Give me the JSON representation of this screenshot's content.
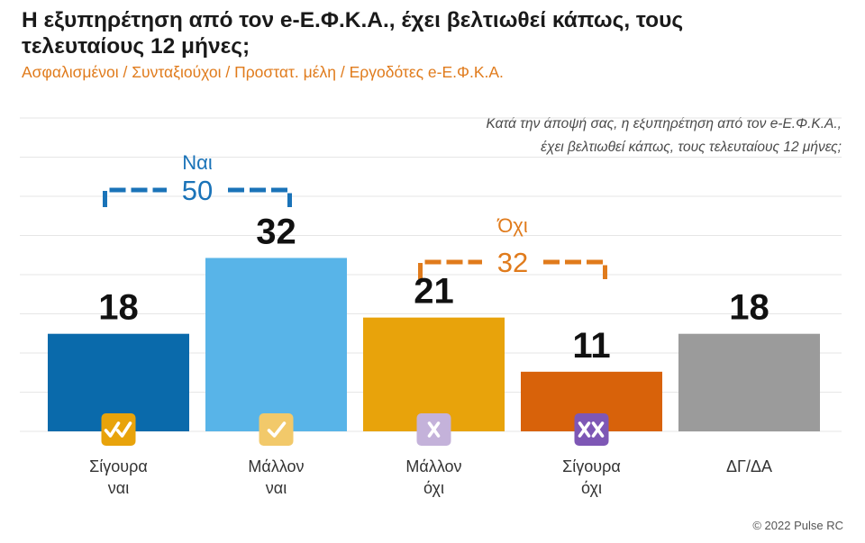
{
  "header": {
    "title": "Η εξυπηρέτηση από τον e-Ε.Φ.Κ.Α., έχει βελτιωθεί κάπως, τους τελευταίους 12 μήνες;",
    "subtitle": "Ασφαλισμένοι / Συνταξιούχοι / Προστατ. μέλη / Εργοδότες e-Ε.Φ.Κ.Α."
  },
  "note": {
    "line1": "Κατά την άποψή σας, η εξυπηρέτηση από τον e-Ε.Φ.Κ.Α.,",
    "line2": "έχει βελτιωθεί κάπως, τους τελευταίους 12 μήνες;"
  },
  "footer": {
    "copyright": "© 2022 Pulse RC"
  },
  "chart_data": {
    "type": "bar",
    "categories": [
      [
        "Σίγουρα",
        "ναι"
      ],
      [
        "Μάλλον",
        "ναι"
      ],
      [
        "Μάλλον",
        "όχι"
      ],
      [
        "Σίγουρα",
        "όχι"
      ],
      [
        "ΔΓ/ΔΑ"
      ]
    ],
    "values": [
      18,
      32,
      21,
      11,
      18
    ],
    "colors": [
      "#0a6aab",
      "#58b4e8",
      "#e8a30b",
      "#d8620a",
      "#9b9b9b"
    ],
    "icons": [
      {
        "name": "double-check-icon",
        "color": "#e8a30b"
      },
      {
        "name": "check-icon",
        "color": "#f2c96a"
      },
      {
        "name": "cross-icon",
        "color": "#c4b2da"
      },
      {
        "name": "double-cross-icon",
        "color": "#7e57b5"
      },
      null
    ],
    "groups": [
      {
        "label": "Ναι",
        "value": 50,
        "color": "#1a73b8",
        "from": 0,
        "to": 1
      },
      {
        "label": "Όχι",
        "value": 32,
        "color": "#e07b1c",
        "from": 2,
        "to": 3
      }
    ],
    "ylim": [
      0,
      58
    ],
    "grid": true
  }
}
